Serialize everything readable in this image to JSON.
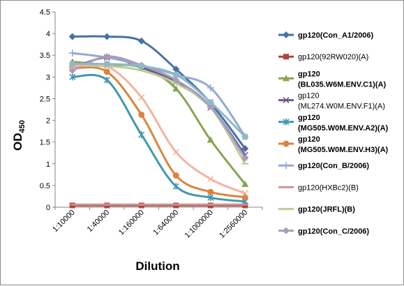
{
  "chart_data": {
    "type": "line",
    "title": "",
    "xlabel": "Dilution",
    "ylabel_main": "OD",
    "ylabel_sub": "450",
    "ylim": [
      0,
      4.5
    ],
    "yticks": [
      "0",
      "0.5",
      "1",
      "1.5",
      "2",
      "2.5",
      "3",
      "3.5",
      "4",
      "4.5"
    ],
    "categories": [
      "1:10000",
      "1:40000",
      "1:160000",
      "1:640000",
      "1:1000000",
      "1:2560000"
    ],
    "grid": false,
    "legend_position": "right",
    "series": [
      {
        "name": "gp120(Con_A1/2006)",
        "bold": true,
        "color": "#4572a7",
        "marker": "diamond",
        "values": [
          3.93,
          3.93,
          3.83,
          3.18,
          2.4,
          1.35
        ]
      },
      {
        "name": "gp120(92RW020)(A)",
        "bold": false,
        "color": "#aa4643",
        "marker": "square",
        "values": [
          0.04,
          0.04,
          0.04,
          0.04,
          0.04,
          0.04
        ]
      },
      {
        "name": "gp120 (BL035.W6M.ENV.C1)(A)",
        "bold": true,
        "color": "#89a54e",
        "marker": "triangle",
        "values": [
          3.35,
          3.28,
          3.22,
          2.73,
          1.55,
          0.53
        ]
      },
      {
        "name": "gp120 (ML274.W0M.ENV.F1)(A)",
        "bold": false,
        "color": "#71588f",
        "marker": "x",
        "values": [
          3.2,
          3.45,
          3.22,
          2.88,
          2.3,
          1.2
        ]
      },
      {
        "name": "gp120 (MG505.W0M.ENV.A2)(A)",
        "bold": true,
        "color": "#4198af",
        "marker": "star",
        "values": [
          3.0,
          2.93,
          1.67,
          0.48,
          0.22,
          0.13
        ]
      },
      {
        "name": "gp120 (MG505.W0M.ENV.H3)(A)",
        "bold": true,
        "color": "#db843d",
        "marker": "circle",
        "values": [
          3.2,
          3.12,
          2.13,
          0.73,
          0.35,
          0.23
        ]
      },
      {
        "name": "gp120(Con_B/2006)",
        "bold": true,
        "color": "#93a9cf",
        "marker": "plus",
        "values": [
          3.55,
          3.45,
          3.27,
          3.05,
          2.75,
          1.63
        ]
      },
      {
        "name": "gp120(HXBc2)(B)",
        "bold": false,
        "color": "#d19392",
        "marker": "dash",
        "values": [
          0.06,
          0.06,
          0.06,
          0.06,
          0.06,
          0.06
        ]
      },
      {
        "name": "gp120(JRFL)(B)",
        "bold": true,
        "color": "#b9cd96",
        "marker": "dash",
        "values": [
          3.25,
          3.25,
          3.15,
          2.85,
          2.3,
          1.0
        ]
      },
      {
        "name": "gp120(Con_C/2006)",
        "bold": true,
        "color": "#a99bbd",
        "marker": "diamond",
        "values": [
          3.15,
          3.47,
          3.27,
          2.93,
          2.32,
          1.13
        ]
      },
      {
        "name": "",
        "bold": false,
        "color": "#f6b39e",
        "marker": "x",
        "values": [
          3.24,
          3.25,
          2.53,
          1.27,
          0.65,
          0.32
        ]
      },
      {
        "name": "",
        "bold": false,
        "color": "#8fb9c8",
        "marker": "square",
        "values": [
          3.3,
          3.3,
          3.25,
          3.05,
          2.42,
          1.62
        ]
      }
    ]
  }
}
